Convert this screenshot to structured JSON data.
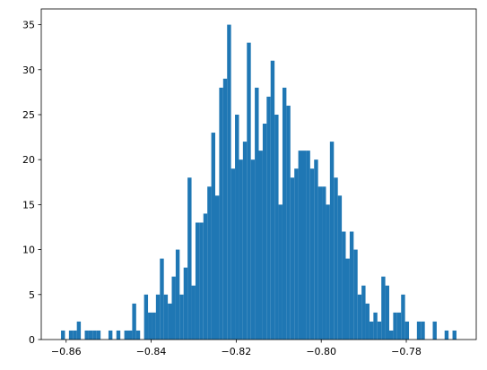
{
  "chart_data": {
    "type": "histogram",
    "color": "#1f77b4",
    "bins": [
      -0.8612,
      -0.86027,
      -0.85934,
      -0.85841,
      -0.85748,
      -0.85655,
      -0.85562,
      -0.85469,
      -0.85376,
      -0.85283,
      -0.8519,
      -0.85097,
      -0.85004,
      -0.84911,
      -0.84818,
      -0.84725,
      -0.84632,
      -0.84539,
      -0.84446,
      -0.84353,
      -0.8426,
      -0.84167,
      -0.84074,
      -0.83981,
      -0.83888,
      -0.83795,
      -0.83702,
      -0.83609,
      -0.83516,
      -0.83423,
      -0.8333,
      -0.83237,
      -0.83144,
      -0.83051,
      -0.82958,
      -0.82865,
      -0.82772,
      -0.82679,
      -0.82586,
      -0.82493,
      -0.824,
      -0.82307,
      -0.82214,
      -0.82121,
      -0.82028,
      -0.81935,
      -0.81842,
      -0.81749,
      -0.81656,
      -0.81563,
      -0.8147,
      -0.81377,
      -0.81284,
      -0.81191,
      -0.81098,
      -0.81005,
      -0.80912,
      -0.80819,
      -0.80726,
      -0.80633,
      -0.8054,
      -0.80447,
      -0.80354,
      -0.80261,
      -0.80168,
      -0.80075,
      -0.79982,
      -0.79889,
      -0.79796,
      -0.79703,
      -0.7961,
      -0.79517,
      -0.79424,
      -0.79331,
      -0.79238,
      -0.79145,
      -0.79052,
      -0.78959,
      -0.78866,
      -0.78773,
      -0.7868,
      -0.78587,
      -0.78494,
      -0.78401,
      -0.78308,
      -0.78215,
      -0.78122,
      -0.78029,
      -0.77936,
      -0.77843,
      -0.7775,
      -0.77657,
      -0.77564,
      -0.77471,
      -0.77378,
      -0.77285,
      -0.77192,
      -0.77099,
      -0.77006,
      -0.76913,
      -0.7682
    ],
    "values": [
      1,
      0,
      1,
      1,
      2,
      0,
      1,
      1,
      1,
      1,
      0,
      0,
      1,
      0,
      1,
      0,
      1,
      1,
      4,
      1,
      0,
      5,
      3,
      3,
      5,
      9,
      5,
      4,
      7,
      10,
      5,
      8,
      18,
      6,
      13,
      13,
      14,
      17,
      23,
      16,
      28,
      29,
      35,
      19,
      25,
      20,
      22,
      33,
      20,
      28,
      21,
      24,
      27,
      31,
      25,
      15,
      28,
      26,
      18,
      19,
      21,
      21,
      21,
      19,
      20,
      17,
      17,
      15,
      22,
      18,
      16,
      12,
      9,
      12,
      10,
      5,
      6,
      4,
      2,
      3,
      2,
      7,
      6,
      1,
      3,
      3,
      5,
      2,
      0,
      0,
      2,
      2,
      0,
      0,
      2,
      0,
      0,
      1,
      0,
      1
    ],
    "xlim": [
      -0.86585,
      -0.76355
    ],
    "xticks": [
      {
        "value": -0.86,
        "label": "−0.86"
      },
      {
        "value": -0.84,
        "label": "−0.84"
      },
      {
        "value": -0.82,
        "label": "−0.82"
      },
      {
        "value": -0.8,
        "label": "−0.80"
      },
      {
        "value": -0.78,
        "label": "−0.78"
      }
    ],
    "ylim": [
      0,
      36.75
    ],
    "yticks": [
      0,
      5,
      10,
      15,
      20,
      25,
      30,
      35
    ]
  }
}
